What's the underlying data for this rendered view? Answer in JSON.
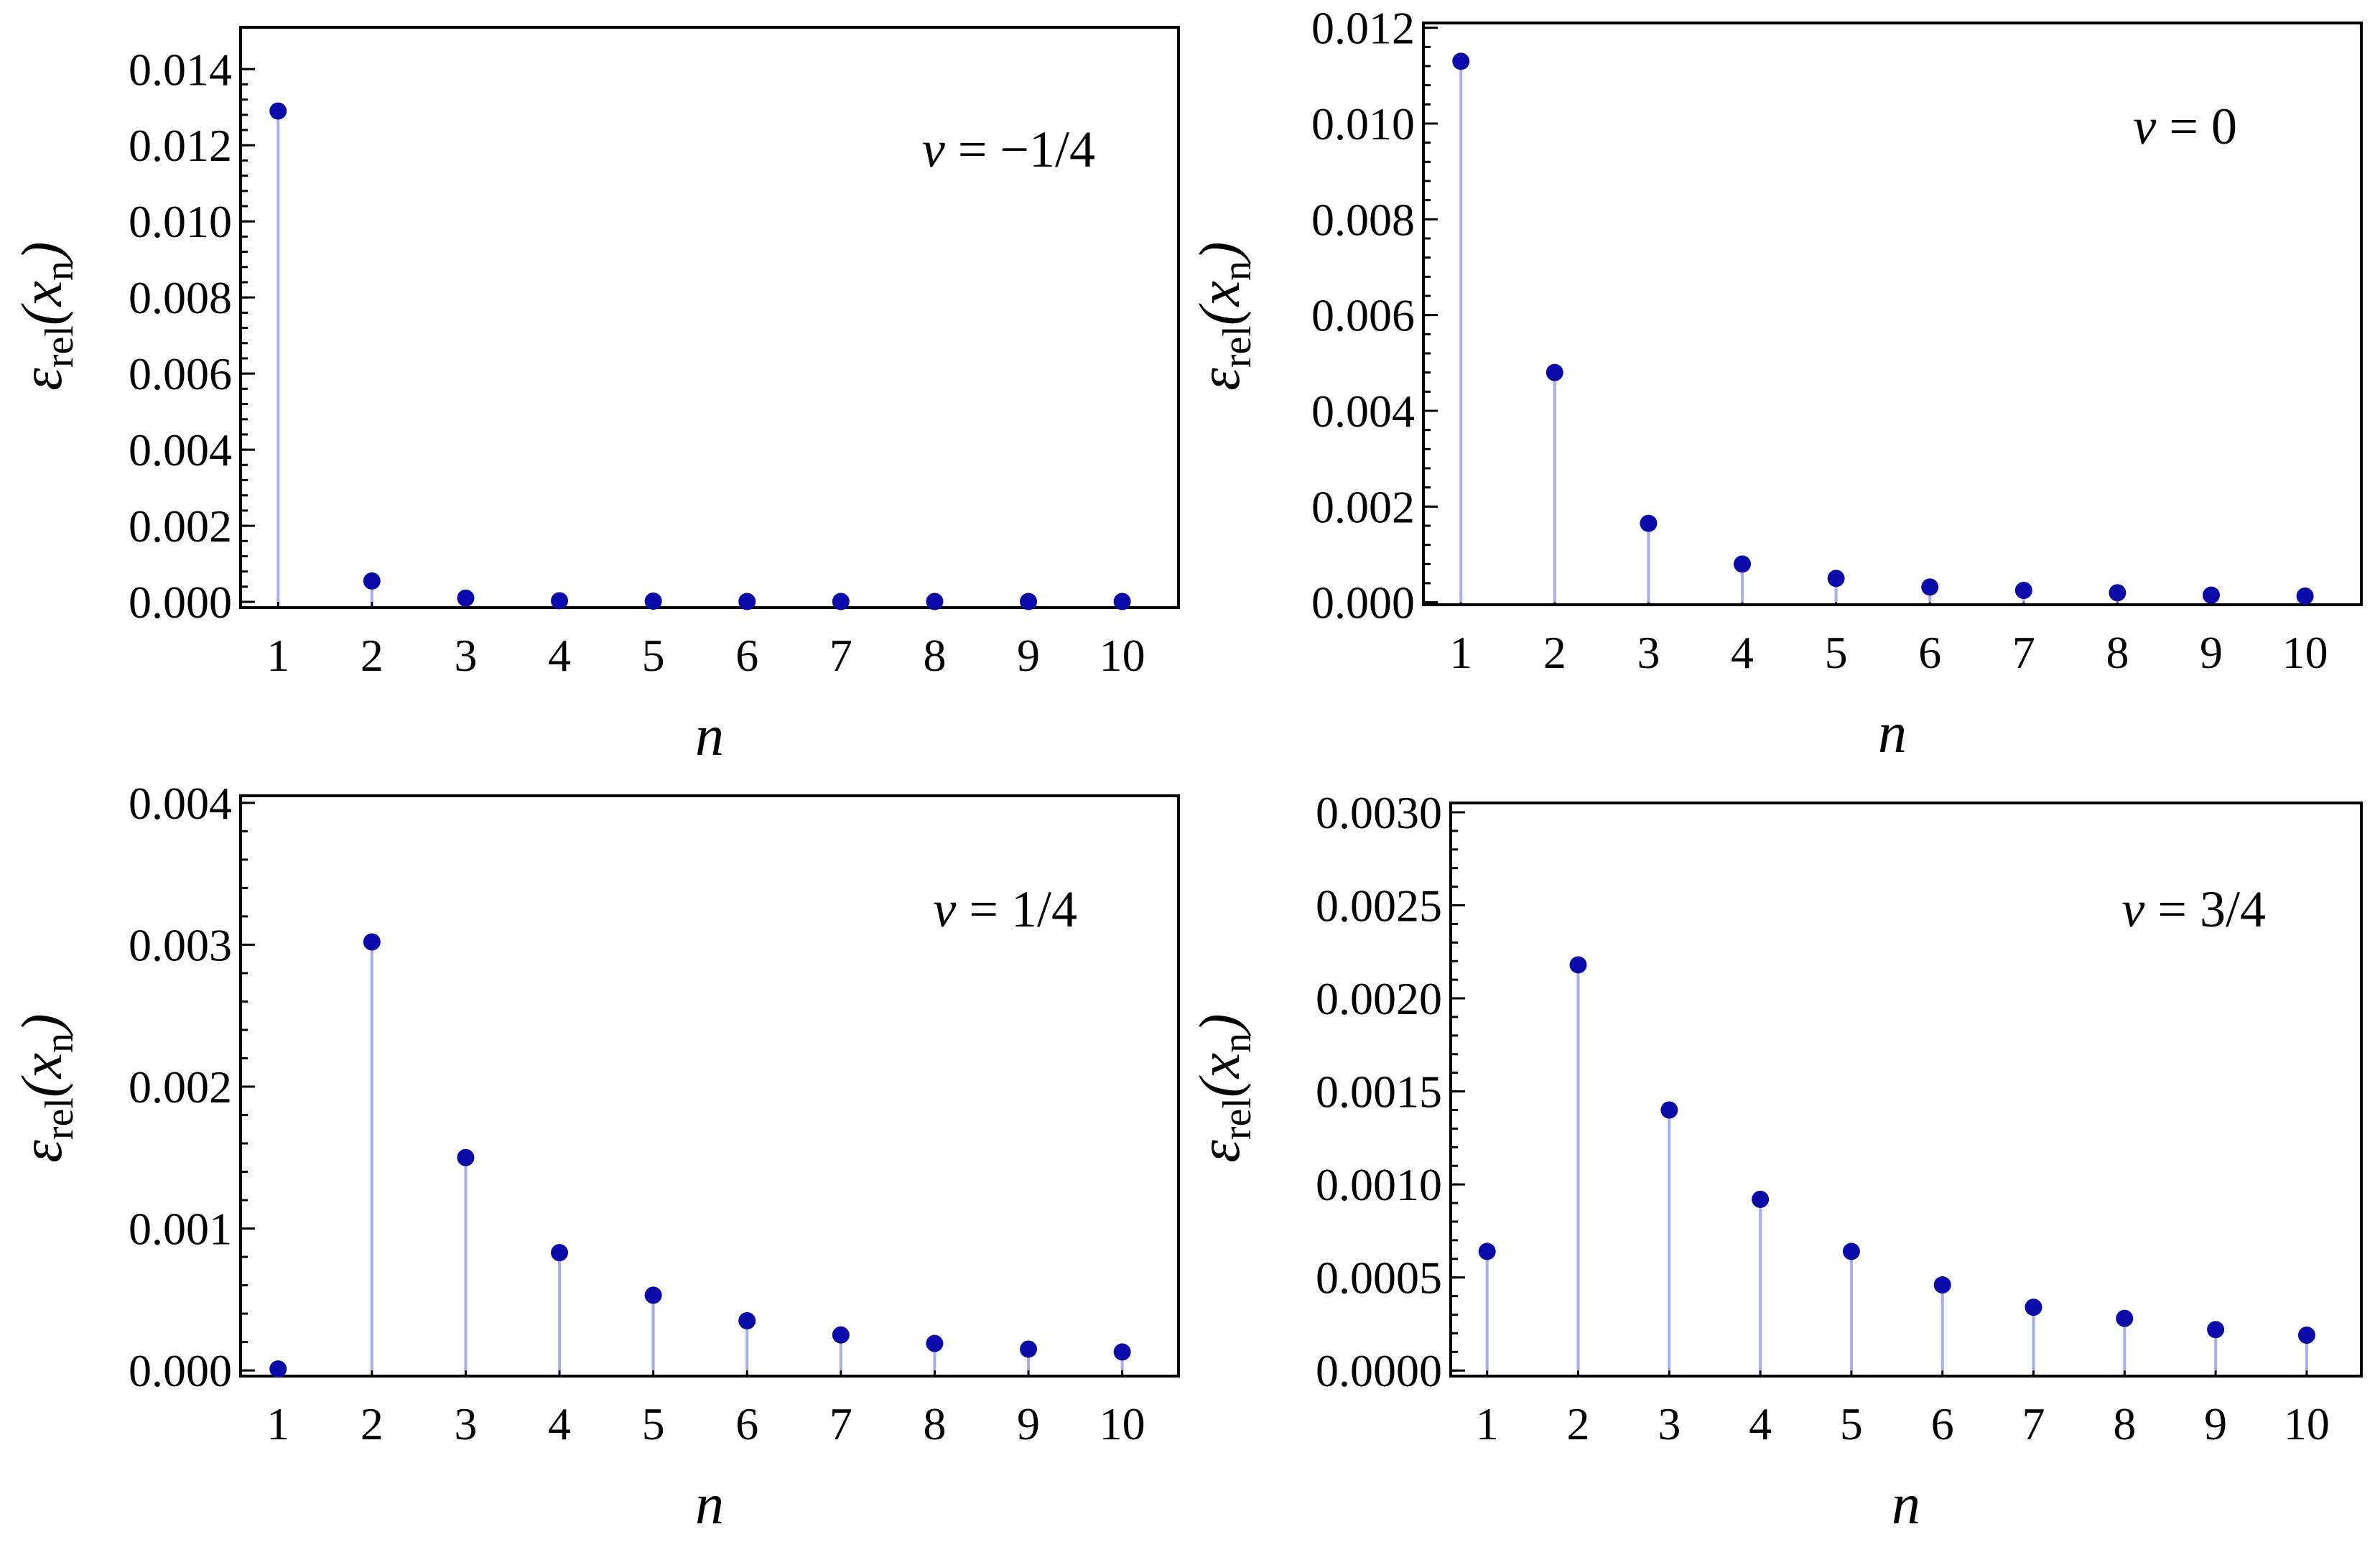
{
  "chart_data": [
    {
      "type": "stem",
      "title": "",
      "annotation": "ν = −1/4",
      "annotation_parts": {
        "symbol": "ν",
        "op": "=",
        "value": "−1/4"
      },
      "xlabel": "n",
      "ylabel": {
        "main": "ε",
        "sub": "rel",
        "arg": "(x",
        "arg_sub": "n",
        "close": ")"
      },
      "x": [
        1,
        2,
        3,
        4,
        5,
        6,
        7,
        8,
        9,
        10
      ],
      "x_tick_labels": [
        "1",
        "2",
        "3",
        "4",
        "5",
        "6",
        "7",
        "8",
        "9",
        "10"
      ],
      "values": [
        0.0129,
        0.00055,
        0.0001,
        3e-05,
        2e-05,
        1e-05,
        1e-05,
        1e-05,
        1e-05,
        1e-05
      ],
      "xlim": [
        0.6,
        10.6
      ],
      "ylim": [
        -0.00015,
        0.0151
      ],
      "y_ticks": [
        0.0,
        0.002,
        0.004,
        0.006,
        0.008,
        0.01,
        0.012,
        0.014
      ],
      "y_tick_labels": [
        "0.000",
        "0.002",
        "0.004",
        "0.006",
        "0.008",
        "0.010",
        "0.012",
        "0.014"
      ],
      "y_minor_step": 0.0004,
      "annotation_position": "top-right"
    },
    {
      "type": "stem",
      "title": "",
      "annotation": "ν = 0",
      "annotation_parts": {
        "symbol": "ν",
        "op": "=",
        "value": "0"
      },
      "xlabel": "n",
      "ylabel": {
        "main": "ε",
        "sub": "rel",
        "arg": "(x",
        "arg_sub": "n",
        "close": ")"
      },
      "x": [
        1,
        2,
        3,
        4,
        5,
        6,
        7,
        8,
        9,
        10
      ],
      "x_tick_labels": [
        "1",
        "2",
        "3",
        "4",
        "5",
        "6",
        "7",
        "8",
        "9",
        "10"
      ],
      "values": [
        0.0113,
        0.0048,
        0.00165,
        0.0008,
        0.0005,
        0.00032,
        0.00025,
        0.0002,
        0.00015,
        0.00013
      ],
      "xlim": [
        0.6,
        10.6
      ],
      "ylim": [
        -5e-05,
        0.0121
      ],
      "y_ticks": [
        0.0,
        0.002,
        0.004,
        0.006,
        0.008,
        0.01,
        0.012
      ],
      "y_tick_labels": [
        "0.000",
        "0.002",
        "0.004",
        "0.006",
        "0.008",
        "0.010",
        "0.012"
      ],
      "y_minor_step": 0.0004,
      "annotation_position": "top-right"
    },
    {
      "type": "stem",
      "title": "",
      "annotation": "ν = 1/4",
      "annotation_parts": {
        "symbol": "ν",
        "op": "=",
        "value": "1/4"
      },
      "xlabel": "n",
      "ylabel": {
        "main": "ε",
        "sub": "rel",
        "arg": "(x",
        "arg_sub": "n",
        "close": ")"
      },
      "x": [
        1,
        2,
        3,
        4,
        5,
        6,
        7,
        8,
        9,
        10
      ],
      "x_tick_labels": [
        "1",
        "2",
        "3",
        "4",
        "5",
        "6",
        "7",
        "8",
        "9",
        "10"
      ],
      "values": [
        1e-05,
        0.00302,
        0.0015,
        0.00083,
        0.00053,
        0.00035,
        0.00025,
        0.00019,
        0.00015,
        0.00013
      ],
      "xlim": [
        0.6,
        10.6
      ],
      "ylim": [
        -4e-05,
        0.00405
      ],
      "y_ticks": [
        0.0,
        0.001,
        0.002,
        0.003,
        0.004
      ],
      "y_tick_labels": [
        "0.000",
        "0.001",
        "0.002",
        "0.003",
        "0.004"
      ],
      "y_minor_step": 0.0002,
      "annotation_position": "top-right"
    },
    {
      "type": "stem",
      "title": "",
      "annotation": "ν = 3/4",
      "annotation_parts": {
        "symbol": "ν",
        "op": "=",
        "value": "3/4"
      },
      "xlabel": "n",
      "ylabel": {
        "main": "ε",
        "sub": "rel",
        "arg": "(x",
        "arg_sub": "n",
        "close": ")"
      },
      "x": [
        1,
        2,
        3,
        4,
        5,
        6,
        7,
        8,
        9,
        10
      ],
      "x_tick_labels": [
        "1",
        "2",
        "3",
        "4",
        "5",
        "6",
        "7",
        "8",
        "9",
        "10"
      ],
      "values": [
        0.00064,
        0.00218,
        0.0014,
        0.00092,
        0.00064,
        0.00046,
        0.00034,
        0.00028,
        0.00022,
        0.00019
      ],
      "xlim": [
        0.6,
        10.6
      ],
      "ylim": [
        -3e-05,
        0.00305
      ],
      "y_ticks": [
        0.0,
        0.0005,
        0.001,
        0.0015,
        0.002,
        0.0025,
        0.003
      ],
      "y_tick_labels": [
        "0.0000",
        "0.0005",
        "0.0010",
        "0.0015",
        "0.0020",
        "0.0025",
        "0.0030"
      ],
      "y_minor_step": 0.0001,
      "annotation_position": "top-right"
    }
  ],
  "colors": {
    "marker": "#0a0aa8",
    "stem": "#a9acef",
    "axis": "#000000"
  }
}
